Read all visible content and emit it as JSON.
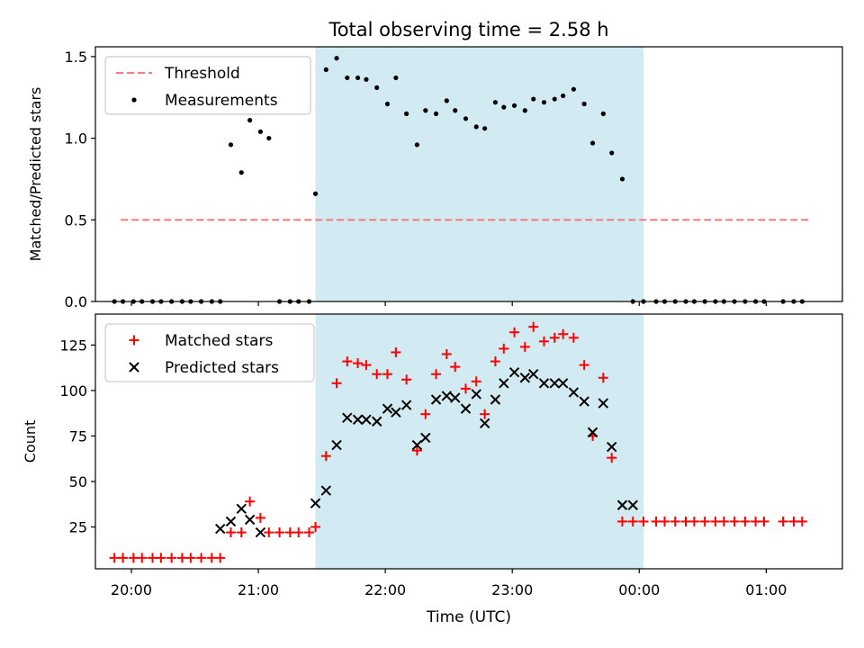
{
  "chart_data": {
    "title": "Total observing time = 2.58 h",
    "xlabel": "Time (UTC)",
    "x_ticks": [
      "20:00",
      "21:00",
      "22:00",
      "23:00",
      "00:00",
      "01:00"
    ],
    "observing_window": {
      "start": "21:27",
      "end": "00:02",
      "color": "#add8e6"
    },
    "panels": [
      {
        "type": "scatter",
        "ylabel": "Matched/Predicted stars",
        "ylim": [
          0,
          1.56
        ],
        "y_ticks": [
          "0.0",
          "0.5",
          "1.0",
          "1.5"
        ],
        "legend": {
          "placement": "top-left",
          "entries": [
            "Threshold",
            "Measurements"
          ]
        },
        "series": [
          {
            "name": "Threshold",
            "kind": "dashed-line",
            "color": "#f08080",
            "x": [
              "19:55",
              "01:20"
            ],
            "y": [
              0.5,
              0.5
            ]
          },
          {
            "name": "Measurements",
            "kind": "dot",
            "color": "#000000",
            "x": [
              "19:52",
              "19:56",
              "20:01",
              "20:05",
              "20:10",
              "20:14",
              "20:19",
              "20:24",
              "20:28",
              "20:33",
              "20:38",
              "20:42",
              "20:47",
              "20:52",
              "20:56",
              "21:01",
              "21:05",
              "21:10",
              "21:15",
              "21:19",
              "21:24",
              "21:27",
              "21:32",
              "21:37",
              "21:42",
              "21:47",
              "21:51",
              "21:56",
              "22:01",
              "22:05",
              "22:10",
              "22:15",
              "22:19",
              "22:24",
              "22:29",
              "22:33",
              "22:38",
              "22:43",
              "22:47",
              "22:52",
              "22:56",
              "23:01",
              "23:06",
              "23:10",
              "23:15",
              "23:20",
              "23:24",
              "23:29",
              "23:34",
              "23:38",
              "23:43",
              "23:47",
              "23:52",
              "23:57",
              "00:02",
              "00:08",
              "00:12",
              "00:17",
              "00:22",
              "00:26",
              "00:31",
              "00:36",
              "00:40",
              "00:45",
              "00:50",
              "00:55",
              "00:59",
              "01:08",
              "01:13",
              "01:17"
            ],
            "y": [
              0,
              0,
              0,
              0,
              0,
              0,
              0,
              0,
              0,
              0,
              0,
              0,
              0.96,
              0.79,
              1.11,
              1.04,
              1.0,
              0,
              0,
              0,
              0,
              0.66,
              1.42,
              1.49,
              1.37,
              1.37,
              1.36,
              1.31,
              1.21,
              1.37,
              1.15,
              0.96,
              1.17,
              1.15,
              1.23,
              1.17,
              1.12,
              1.07,
              1.06,
              1.22,
              1.19,
              1.2,
              1.17,
              1.24,
              1.22,
              1.24,
              1.26,
              1.3,
              1.21,
              0.97,
              1.15,
              0.91,
              0.75,
              0,
              0,
              0,
              0,
              0,
              0,
              0,
              0,
              0,
              0,
              0,
              0,
              0,
              0,
              0,
              0,
              0
            ]
          }
        ]
      },
      {
        "type": "scatter",
        "ylabel": "Count",
        "ylim": [
          2,
          142
        ],
        "y_ticks": [
          "25",
          "50",
          "75",
          "100",
          "125"
        ],
        "legend": {
          "placement": "top-left",
          "entries": [
            "Matched stars",
            "Predicted stars"
          ]
        },
        "series": [
          {
            "name": "Matched stars",
            "kind": "plus",
            "color": "#ff0000",
            "x": [
              "19:52",
              "19:56",
              "20:01",
              "20:05",
              "20:10",
              "20:14",
              "20:19",
              "20:24",
              "20:28",
              "20:33",
              "20:38",
              "20:42",
              "20:47",
              "20:52",
              "20:56",
              "21:01",
              "21:05",
              "21:10",
              "21:15",
              "21:19",
              "21:24",
              "21:27",
              "21:32",
              "21:37",
              "21:42",
              "21:47",
              "21:51",
              "21:56",
              "22:01",
              "22:05",
              "22:10",
              "22:15",
              "22:19",
              "22:24",
              "22:29",
              "22:33",
              "22:38",
              "22:43",
              "22:47",
              "22:52",
              "22:56",
              "23:01",
              "23:06",
              "23:10",
              "23:15",
              "23:20",
              "23:24",
              "23:29",
              "23:34",
              "23:38",
              "23:43",
              "23:47",
              "23:52",
              "23:57",
              "00:02",
              "00:08",
              "00:12",
              "00:17",
              "00:22",
              "00:26",
              "00:31",
              "00:36",
              "00:40",
              "00:45",
              "00:50",
              "00:55",
              "00:59",
              "01:08",
              "01:13",
              "01:17"
            ],
            "y": [
              8,
              8,
              8,
              8,
              8,
              8,
              8,
              8,
              8,
              8,
              8,
              8,
              22,
              22,
              39,
              30,
              22,
              22,
              22,
              22,
              22,
              25,
              64,
              104,
              116,
              115,
              114,
              109,
              109,
              121,
              106,
              67,
              87,
              109,
              120,
              113,
              101,
              105,
              87,
              116,
              123,
              132,
              124,
              135,
              127,
              129,
              131,
              129,
              114,
              75,
              107,
              63,
              28,
              28,
              28,
              28,
              28,
              28,
              28,
              28,
              28,
              28,
              28,
              28,
              28,
              28,
              28,
              28,
              28,
              28
            ]
          },
          {
            "name": "Predicted stars",
            "kind": "x",
            "color": "#000000",
            "x": [
              "20:42",
              "20:47",
              "20:52",
              "20:56",
              "21:01",
              "21:27",
              "21:32",
              "21:37",
              "21:42",
              "21:47",
              "21:51",
              "21:56",
              "22:01",
              "22:05",
              "22:10",
              "22:15",
              "22:19",
              "22:24",
              "22:29",
              "22:33",
              "22:38",
              "22:43",
              "22:47",
              "22:52",
              "22:56",
              "23:01",
              "23:06",
              "23:10",
              "23:15",
              "23:20",
              "23:24",
              "23:29",
              "23:34",
              "23:38",
              "23:43",
              "23:47",
              "23:52",
              "23:57"
            ],
            "y": [
              24,
              28,
              35,
              29,
              22,
              38,
              45,
              70,
              85,
              84,
              84,
              83,
              90,
              88,
              92,
              70,
              74,
              95,
              97,
              96,
              90,
              98,
              82,
              95,
              104,
              110,
              107,
              109,
              104,
              104,
              104,
              99,
              94,
              77,
              93,
              69,
              37,
              37
            ]
          }
        ]
      }
    ]
  }
}
